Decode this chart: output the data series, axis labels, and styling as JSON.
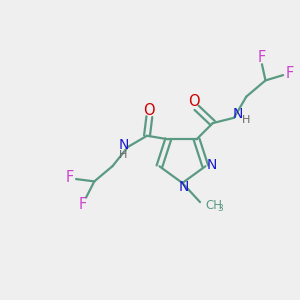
{
  "background_color": "#efefef",
  "bond_color": "#5a9a82",
  "N_color": "#1a1acc",
  "O_color": "#cc0000",
  "F_color": "#cc44cc",
  "H_color": "#666666",
  "figsize": [
    3.0,
    3.0
  ],
  "dpi": 100,
  "xlim": [
    0,
    10
  ],
  "ylim": [
    0,
    10
  ]
}
